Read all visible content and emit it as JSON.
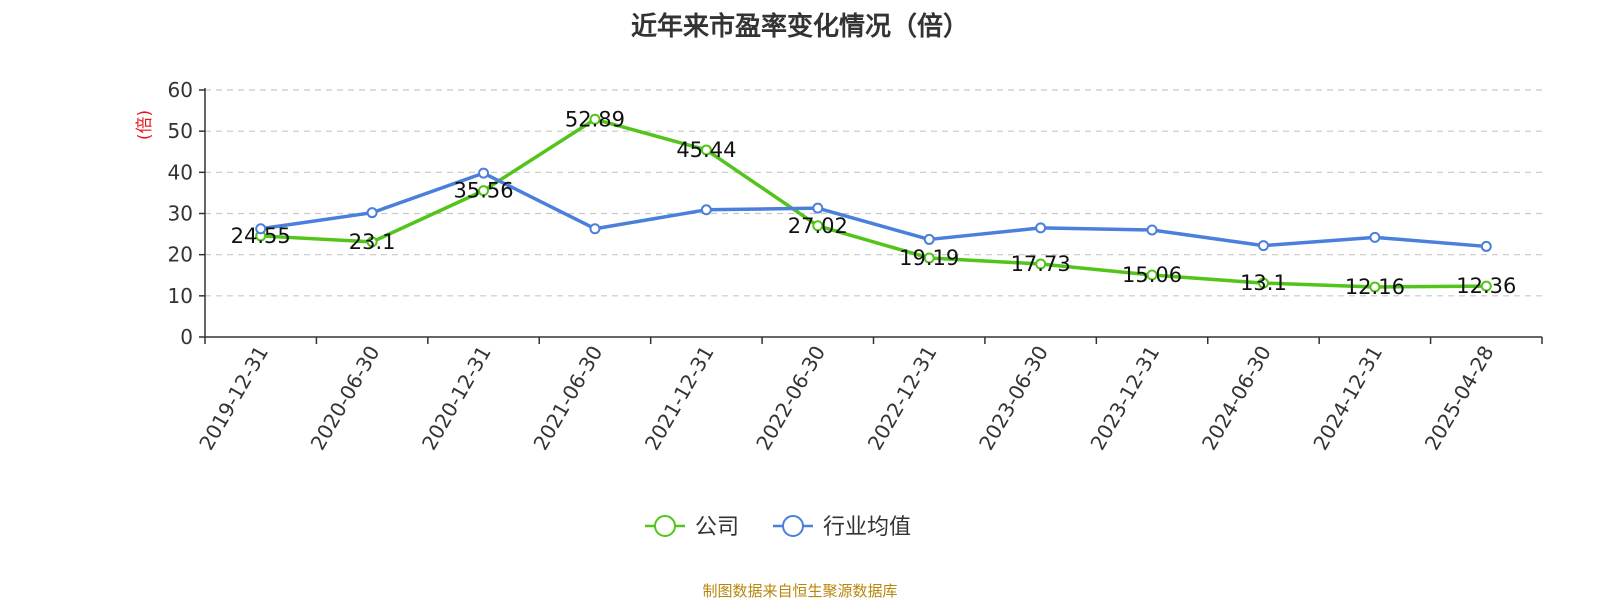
{
  "chart_data": {
    "type": "line",
    "title": "近年来市盈率变化情况（倍）",
    "ylabel": "(倍)",
    "ylim": [
      0,
      60
    ],
    "yticks": [
      0,
      10,
      20,
      30,
      40,
      50,
      60
    ],
    "grid": true,
    "legend_position": "bottom",
    "categories": [
      "2019-12-31",
      "2020-06-30",
      "2020-12-31",
      "2021-06-30",
      "2021-12-31",
      "2022-06-30",
      "2022-12-31",
      "2023-06-30",
      "2023-12-31",
      "2024-06-30",
      "2024-12-31",
      "2025-04-28"
    ],
    "series": [
      {
        "name": "公司",
        "color": "#52c41a",
        "values": [
          24.55,
          23.1,
          35.56,
          52.89,
          45.44,
          27.02,
          19.19,
          17.73,
          15.06,
          13.1,
          12.16,
          12.36
        ],
        "labels": [
          "24.55",
          "23.1",
          "35.56",
          "52.89",
          "45.44",
          "27.02",
          "19.19",
          "17.73",
          "15.06",
          "13.1",
          "12.16",
          "12.36"
        ]
      },
      {
        "name": "行业均值",
        "color": "#4a7fdc",
        "values": [
          26.3,
          30.2,
          39.8,
          26.3,
          30.9,
          31.3,
          23.7,
          26.5,
          26.0,
          22.2,
          24.2,
          22.0
        ]
      }
    ],
    "ylabel_color": "#e8141b",
    "source": "制图数据来自恒生聚源数据库",
    "source_color": "#b8860b"
  }
}
